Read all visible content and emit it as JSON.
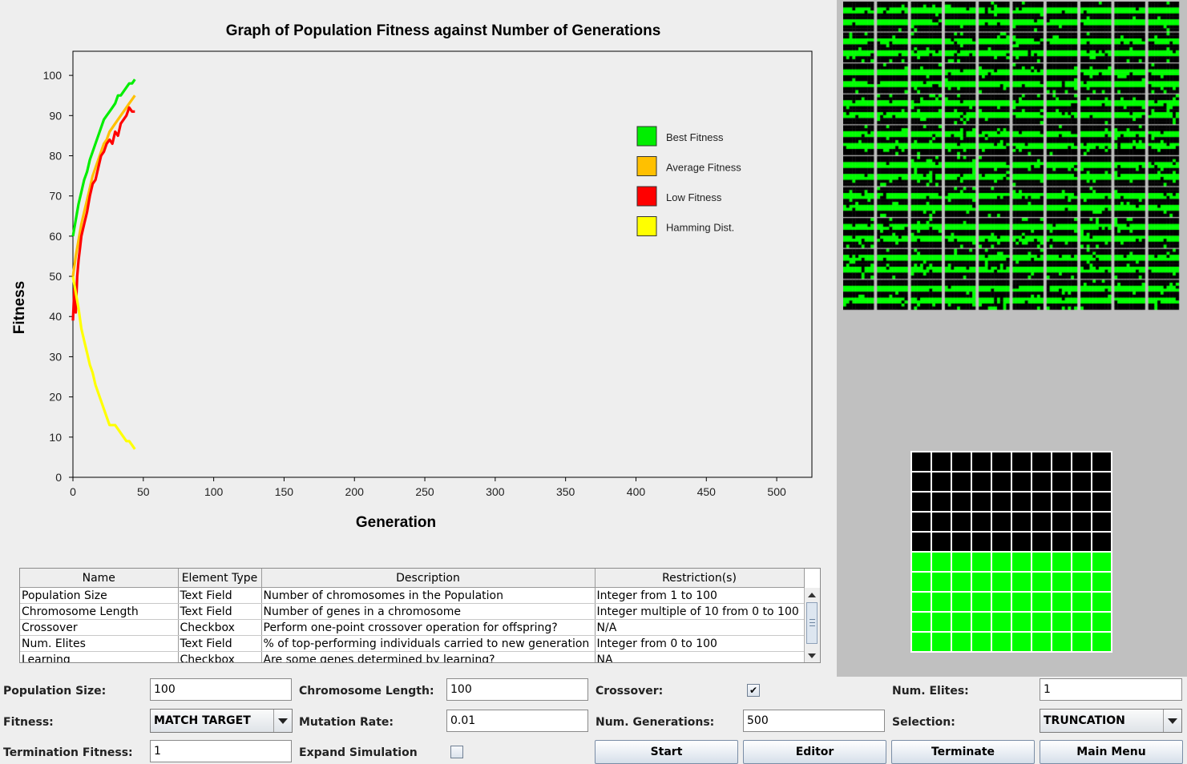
{
  "chart_data": {
    "type": "line",
    "title": "Graph of Population Fitness against Number of Generations",
    "xlabel": "Generation",
    "ylabel": "Fitness",
    "xlim": [
      0,
      525
    ],
    "ylim": [
      0,
      106
    ],
    "x_ticks": [
      0,
      50,
      100,
      150,
      200,
      250,
      300,
      350,
      400,
      450,
      500
    ],
    "y_ticks": [
      0,
      10,
      20,
      30,
      40,
      50,
      60,
      70,
      80,
      90,
      100
    ],
    "legend_position": "top-right",
    "grid": false,
    "series": [
      {
        "name": "Best Fitness",
        "color": "#00ee00",
        "x": [
          0,
          2,
          4,
          6,
          8,
          10,
          12,
          14,
          16,
          18,
          20,
          22,
          24,
          26,
          28,
          30,
          32,
          34,
          36,
          38,
          40,
          42,
          44
        ],
        "y": [
          60,
          64,
          68,
          71,
          74,
          76,
          79,
          81,
          83,
          85,
          87,
          89,
          90,
          91,
          92,
          93,
          95,
          95,
          96,
          97,
          98,
          98,
          99
        ]
      },
      {
        "name": "Average Fitness",
        "color": "#ffc000",
        "x": [
          0,
          2,
          4,
          6,
          8,
          10,
          12,
          14,
          16,
          18,
          20,
          22,
          24,
          26,
          28,
          30,
          32,
          34,
          36,
          38,
          40,
          42,
          44
        ],
        "y": [
          50,
          55,
          59,
          63,
          66,
          69,
          72,
          75,
          77,
          79,
          81,
          83,
          84,
          86,
          87,
          88,
          89,
          90,
          91,
          92,
          93,
          94,
          95
        ]
      },
      {
        "name": "Low Fitness",
        "color": "#ff0000",
        "x": [
          0,
          1,
          2,
          3,
          4,
          5,
          6,
          8,
          10,
          12,
          14,
          16,
          18,
          20,
          22,
          24,
          26,
          28,
          30,
          32,
          34,
          36,
          38,
          40,
          42,
          44
        ],
        "y": [
          39,
          47,
          41,
          50,
          54,
          57,
          60,
          63,
          66,
          70,
          73,
          74,
          77,
          80,
          81,
          83,
          84,
          83,
          86,
          85,
          88,
          89,
          90,
          92,
          91,
          91
        ]
      },
      {
        "name": "Hamming Dist.",
        "color": "#ffff00",
        "x": [
          0,
          2,
          4,
          6,
          8,
          10,
          12,
          14,
          16,
          18,
          20,
          22,
          24,
          26,
          28,
          30,
          32,
          34,
          36,
          38,
          40,
          42,
          44
        ],
        "y": [
          50,
          46,
          42,
          37,
          34,
          31,
          28,
          26,
          23,
          21,
          19,
          17,
          15,
          13,
          13,
          13,
          12,
          11,
          10,
          9,
          9,
          8,
          7
        ]
      }
    ]
  },
  "param_table": {
    "headers": [
      "Name",
      "Element Type",
      "Description",
      "Restriction(s)"
    ],
    "rows": [
      [
        "Population Size",
        "Text Field",
        "Number of chromosomes in the Population",
        "Integer from 1 to 100"
      ],
      [
        "Chromosome Length",
        "Text Field",
        "Number of genes in a chromosome",
        "Integer multiple of 10 from 0 to 100"
      ],
      [
        "Crossover",
        "Checkbox",
        "Perform one-point crossover operation for offspring?",
        "N/A"
      ],
      [
        "Num. Elites",
        "Text Field",
        "% of top-performing individuals carried to new generation",
        "Integer from 0 to 100"
      ],
      [
        "Learning",
        "Checkbox",
        "Are some genes determined by learning?",
        "NA"
      ]
    ]
  },
  "form": {
    "population_size": {
      "label": "Population Size:",
      "value": "100"
    },
    "chromosome_length": {
      "label": "Chromosome Length:",
      "value": "100"
    },
    "crossover": {
      "label": "Crossover:",
      "checked": true,
      "mark": "✔"
    },
    "num_elites": {
      "label": "Num. Elites:",
      "value": "1"
    },
    "fitness": {
      "label": "Fitness:",
      "value": "MATCH TARGET"
    },
    "mutation_rate": {
      "label": "Mutation Rate:",
      "value": "0.01"
    },
    "num_generations": {
      "label": "Num. Generations:",
      "value": "500"
    },
    "selection": {
      "label": "Selection:",
      "value": "TRUNCATION"
    },
    "termination_fitness": {
      "label": "Termination Fitness:",
      "value": "1"
    },
    "expand_simulation": {
      "label": "Expand Simulation",
      "checked": false
    }
  },
  "buttons": {
    "start": "Start",
    "editor": "Editor",
    "terminate": "Terminate",
    "main_menu": "Main Menu"
  },
  "population_grid": {
    "rows": 10,
    "cols": 10,
    "genes_per_chromosome": 100,
    "colors": {
      "on": "#00ff00",
      "off": "#000000",
      "background": "#c0c0c0"
    }
  },
  "target": {
    "rows": 10,
    "cols": 10,
    "pattern": "top 5 rows off (black), bottom 5 rows on (green)",
    "colors": {
      "on": "#00ff00",
      "off": "#000000"
    }
  }
}
